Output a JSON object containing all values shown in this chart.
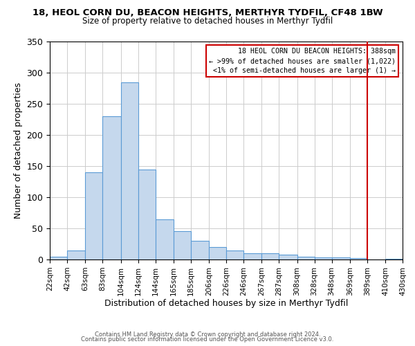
{
  "title": "18, HEOL CORN DU, BEACON HEIGHTS, MERTHYR TYDFIL, CF48 1BW",
  "subtitle": "Size of property relative to detached houses in Merthyr Tydfil",
  "xlabel": "Distribution of detached houses by size in Merthyr Tydfil",
  "ylabel": "Number of detached properties",
  "bar_color": "#c5d8ed",
  "bar_edge_color": "#5b9bd5",
  "bin_edges": [
    22,
    42,
    63,
    83,
    104,
    124,
    144,
    165,
    185,
    206,
    226,
    246,
    267,
    287,
    308,
    328,
    348,
    369,
    389,
    410,
    430
  ],
  "bar_heights": [
    5,
    14,
    140,
    230,
    285,
    145,
    65,
    46,
    30,
    20,
    14,
    10,
    10,
    8,
    5,
    3,
    3,
    2,
    0,
    1
  ],
  "tick_labels": [
    "22sqm",
    "42sqm",
    "63sqm",
    "83sqm",
    "104sqm",
    "124sqm",
    "144sqm",
    "165sqm",
    "185sqm",
    "206sqm",
    "226sqm",
    "246sqm",
    "267sqm",
    "287sqm",
    "308sqm",
    "328sqm",
    "348sqm",
    "369sqm",
    "389sqm",
    "410sqm",
    "430sqm"
  ],
  "ylim": [
    0,
    350
  ],
  "yticks": [
    0,
    50,
    100,
    150,
    200,
    250,
    300,
    350
  ],
  "property_line_x": 389,
  "annotation_line1": "18 HEOL CORN DU BEACON HEIGHTS: 388sqm",
  "annotation_line2": "← >99% of detached houses are smaller (1,022)",
  "annotation_line3": "<1% of semi-detached houses are larger (1) →",
  "annotation_box_color": "#ffffff",
  "annotation_box_edge_color": "#cc0000",
  "footer1": "Contains HM Land Registry data © Crown copyright and database right 2024.",
  "footer2": "Contains public sector information licensed under the Open Government Licence v3.0.",
  "background_color": "#ffffff",
  "grid_color": "#cccccc"
}
